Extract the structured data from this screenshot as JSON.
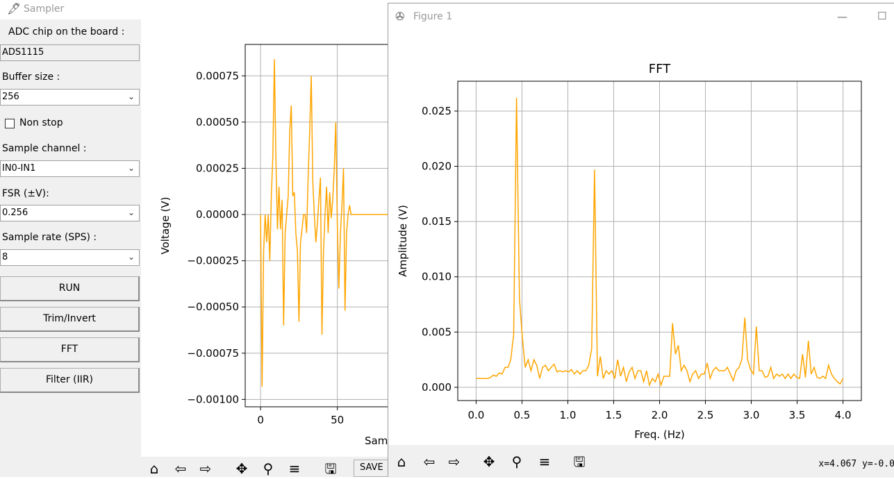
{
  "sampler": {
    "title": "Sampler",
    "adc_label": "ADC chip on the board :",
    "adc_value": "ADS1115",
    "buffer_label": "Buffer size :",
    "buffer_value": "256",
    "nonstop_label": "Non stop",
    "channel_label": "Sample channel :",
    "channel_value": "IN0-IN1",
    "fsr_label": "FSR (±V):",
    "fsr_value": "0.256",
    "rate_label": "Sample rate (SPS) :",
    "rate_value": "8",
    "buttons": {
      "run": "RUN",
      "trim": "Trim/Invert",
      "fft": "FFT",
      "filter": "Filter (IIR)"
    },
    "save_label": "SAVE"
  },
  "voltage_chart": {
    "ylabel": "Voltage (V)",
    "xlabel_partial": "Sam",
    "ytick_labels": [
      "0.00075",
      "0.00050",
      "0.00025",
      "0.00000",
      "−0.00025",
      "−0.00050",
      "−0.00075",
      "−0.00100"
    ],
    "xtick_labels": [
      "0",
      "50"
    ]
  },
  "figure": {
    "title": "Figure 1",
    "status": "x=4.067 y=-0.0"
  },
  "chart_data": [
    {
      "type": "line",
      "title": "",
      "xlabel": "Samples (partially visible: \"Sam\")",
      "ylabel": "Voltage (V)",
      "xlim": [
        -10,
        85
      ],
      "ylim": [
        -0.00104,
        0.00092
      ],
      "yticks": [
        0.00075,
        0.0005,
        0.00025,
        0,
        -0.00025,
        -0.0005,
        -0.00075,
        -0.001
      ],
      "xticks": [
        0,
        50
      ],
      "grid": true,
      "color": "#ffa500",
      "x": [
        0,
        1,
        2,
        3,
        4,
        5,
        6,
        7,
        8,
        9,
        10,
        11,
        12,
        13,
        14,
        15,
        16,
        17,
        18,
        19,
        20,
        21,
        22,
        23,
        24,
        25,
        26,
        27,
        28,
        29,
        30,
        31,
        32,
        33,
        34,
        35,
        36,
        37,
        38,
        39,
        40,
        41,
        42,
        43,
        44,
        45,
        46,
        47,
        48,
        49,
        50,
        51,
        52,
        53,
        54,
        55,
        56,
        57,
        58,
        59,
        60,
        61,
        62,
        63,
        64,
        65,
        66,
        67,
        68,
        69,
        70,
        71,
        72,
        73,
        74,
        75,
        76,
        77,
        78,
        79,
        80,
        81,
        82,
        83,
        84,
        85
      ],
      "y": [
        0.0,
        -0.00093,
        -0.0002,
        0.0,
        -0.00015,
        0.0,
        -0.00025,
        0.0001,
        0.00032,
        0.00084,
        0.0003,
        -8e-05,
        0.00015,
        -8e-05,
        8e-05,
        -0.0006,
        -0.0001,
        0.0,
        0.0001,
        0.00045,
        0.00059,
        0.0001,
        0.00012,
        -0.0001,
        -0.0002,
        -0.00058,
        -0.00015,
        -8e-05,
        0.0,
        0.0,
        -0.0001,
        0.0002,
        0.00045,
        0.00075,
        0.00018,
        0.0,
        -0.00015,
        -5e-05,
        8e-05,
        0.0002,
        -0.00065,
        -0.0002,
        0.0,
        0.00015,
        -0.0001,
        0.00012,
        -2e-05,
        8e-05,
        0.00025,
        0.0005,
        -5e-05,
        -0.0004,
        -0.0001,
        5e-05,
        0.00025,
        -0.00052,
        -0.0001,
        0.0,
        5e-05,
        0.0,
        0.0,
        0.0,
        0.0,
        0.0,
        0.0,
        0.0,
        0.0,
        0.0,
        0.0,
        0.0,
        0.0,
        0.0,
        0.0,
        0.0,
        0.0,
        0.0,
        0.0,
        0.0,
        0.0,
        0.0,
        0.0,
        0.0,
        0.0,
        0.0,
        0.0,
        0.0
      ]
    },
    {
      "type": "line",
      "title": "FFT",
      "xlabel": "Freq. (Hz)",
      "ylabel": "Amplitude (V)",
      "xlim": [
        -0.2,
        4.2
      ],
      "ylim": [
        -0.0012,
        0.0277
      ],
      "xticks": [
        0.0,
        0.5,
        1.0,
        1.5,
        2.0,
        2.5,
        3.0,
        3.5,
        4.0
      ],
      "xtick_labels": [
        "0.0",
        "0.5",
        "1.0",
        "1.5",
        "2.0",
        "2.5",
        "3.0",
        "3.5",
        "4.0"
      ],
      "yticks": [
        0.0,
        0.005,
        0.01,
        0.015,
        0.02,
        0.025
      ],
      "ytick_labels": [
        "0.000",
        "0.005",
        "0.010",
        "0.015",
        "0.020",
        "0.025"
      ],
      "grid": true,
      "color": "#ffa500",
      "y": [
        0.0008,
        0.0008,
        0.0008,
        0.0008,
        0.0008,
        0.0009,
        0.0011,
        0.001,
        0.0013,
        0.0012,
        0.0018,
        0.0018,
        0.0025,
        0.0048,
        0.0262,
        0.008,
        0.0045,
        0.0018,
        0.0025,
        0.0015,
        0.0025,
        0.002,
        0.0008,
        0.0018,
        0.002,
        0.0015,
        0.0018,
        0.0021,
        0.0014,
        0.0015,
        0.0014,
        0.0015,
        0.0014,
        0.0016,
        0.0012,
        0.0015,
        0.0012,
        0.0015,
        0.0015,
        0.002,
        0.0035,
        0.0197,
        0.001,
        0.0028,
        0.0008,
        0.0015,
        0.0012,
        0.0015,
        0.0008,
        0.0025,
        0.001,
        0.0018,
        0.0005,
        0.0014,
        0.0018,
        0.0008,
        0.0015,
        0.0015,
        0.0005,
        0.0015,
        0.0002,
        0.0008,
        0.0005,
        0.0012,
        0.0002,
        0.001,
        0.001,
        0.001,
        0.0058,
        0.003,
        0.0038,
        0.0015,
        0.002,
        0.0015,
        0.0005,
        0.0012,
        0.0015,
        0.0008,
        0.0012,
        0.0012,
        0.0022,
        0.0008,
        0.0015,
        0.0018,
        0.0015,
        0.0015,
        0.0015,
        0.0018,
        0.0012,
        0.0006,
        0.0015,
        0.0018,
        0.0025,
        0.0063,
        0.0025,
        0.0016,
        0.0012,
        0.0055,
        0.0015,
        0.0015,
        0.0009,
        0.001,
        0.0018,
        0.0008,
        0.0012,
        0.001,
        0.0012,
        0.0008,
        0.0012,
        0.0008,
        0.0012,
        0.0009,
        0.0008,
        0.003,
        0.0009,
        0.0042,
        0.0012,
        0.0018,
        0.0009,
        0.0008,
        0.001,
        0.0008,
        0.002,
        0.0012,
        0.0008,
        0.0005,
        0.0003,
        0.0008
      ]
    }
  ]
}
